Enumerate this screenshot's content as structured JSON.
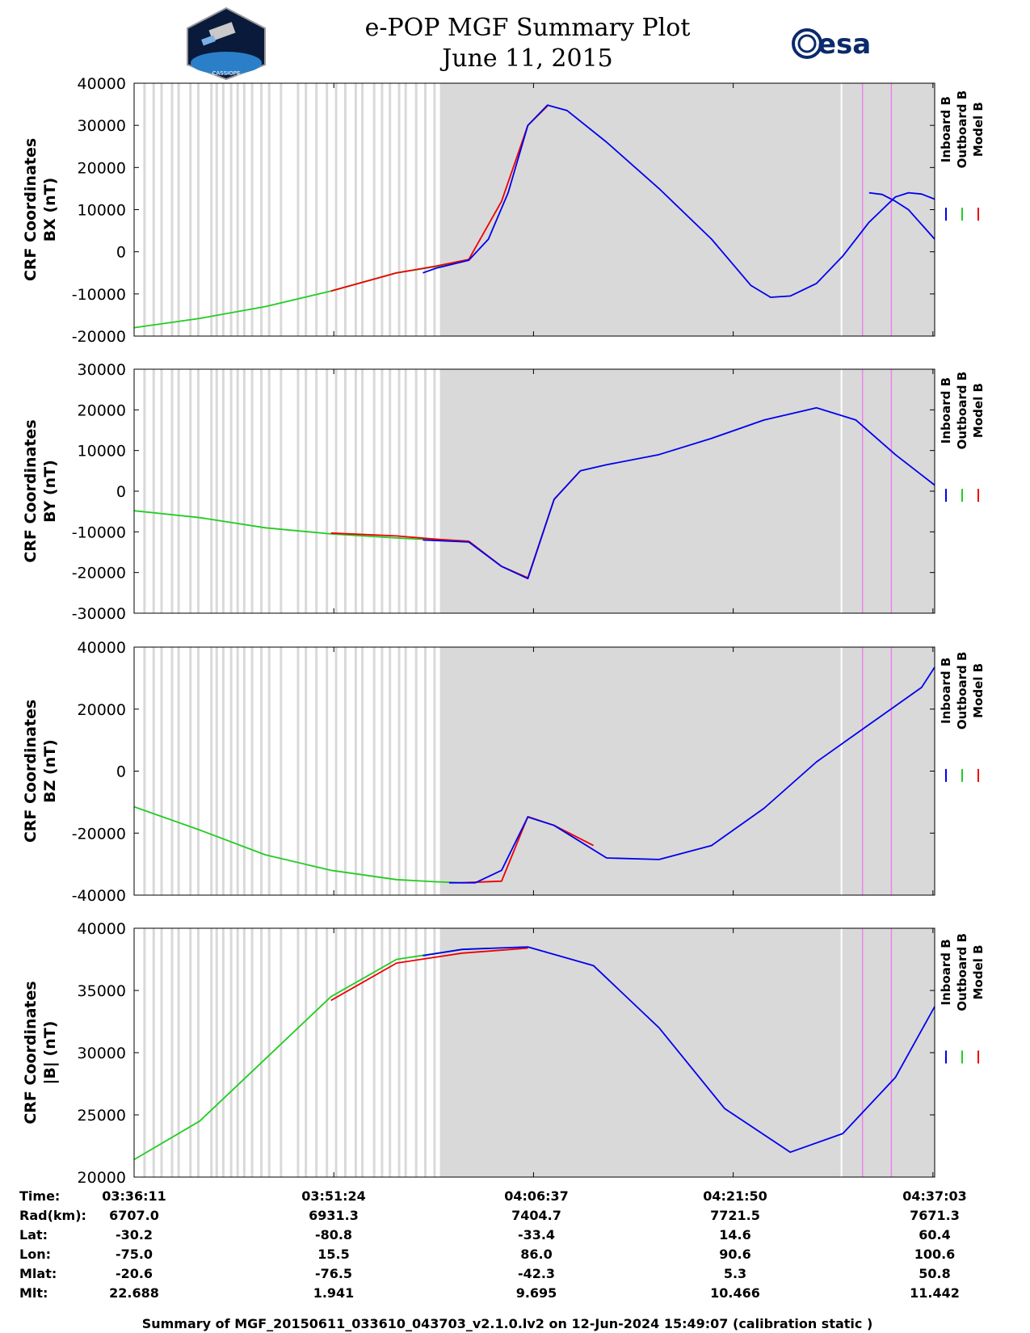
{
  "header": {
    "title_line1": "e-POP MGF Summary Plot",
    "title_line2": "June 11, 2015",
    "logo_left_text": "CASSIOPE",
    "logo_right_text": "esa"
  },
  "legend": {
    "inboard": "Inboard B",
    "outboard": "Outboard B",
    "model": "Model B"
  },
  "colors": {
    "inboard": "#0000ee",
    "outboard": "#22cc22",
    "model": "#ee0000",
    "background_shading": "#d9d9d9",
    "flag_line": "#ee82ee"
  },
  "chart_data": [
    {
      "type": "line",
      "ylabel_line1": "CRF Coordinates",
      "ylabel_line2": "BX (nT)",
      "ylim": [
        -20000,
        40000
      ],
      "yticks": [
        "-20000",
        "-10000",
        "0",
        "10000",
        "20000",
        "30000",
        "40000"
      ],
      "xlim_minutes": [
        0,
        61
      ],
      "series": [
        {
          "name": "Outboard B",
          "x": [
            0,
            5,
            10,
            15,
            20,
            23,
            25.5
          ],
          "y": [
            -18000,
            -15800,
            -13000,
            -9300,
            -5000,
            -3500,
            -2000
          ]
        },
        {
          "name": "Model B",
          "x": [
            15,
            20,
            23,
            25.5,
            28,
            30,
            31.5
          ],
          "y": [
            -9300,
            -5000,
            -3400,
            -1800,
            12000,
            30000,
            34600
          ]
        },
        {
          "name": "Inboard B",
          "x": [
            22,
            23,
            25.5,
            27,
            28.5,
            30,
            31.5,
            33,
            36,
            40,
            44,
            47,
            48.5,
            50,
            52,
            54,
            56,
            58,
            59,
            60,
            61
          ],
          "y": [
            -5000,
            -3900,
            -2000,
            3000,
            14000,
            30000,
            34800,
            33500,
            26000,
            15000,
            3000,
            -8000,
            -10800,
            -10500,
            -7500,
            -1000,
            7000,
            13000,
            14000,
            13700,
            12500
          ]
        },
        {
          "name": "Inboard B",
          "x": [
            56,
            57,
            58,
            59,
            60,
            61
          ],
          "y": [
            14000,
            13600,
            12000,
            10000,
            6500,
            3000
          ]
        }
      ]
    },
    {
      "type": "line",
      "ylabel_line1": "CRF Coordinates",
      "ylabel_line2": "BY (nT)",
      "ylim": [
        -30000,
        30000
      ],
      "yticks": [
        "-30000",
        "-20000",
        "-10000",
        "0",
        "10000",
        "20000",
        "30000"
      ],
      "xlim_minutes": [
        0,
        61
      ],
      "series": [
        {
          "name": "Outboard B",
          "x": [
            0,
            5,
            10,
            15,
            20,
            23,
            25.5
          ],
          "y": [
            -4800,
            -6500,
            -9000,
            -10500,
            -11500,
            -12000,
            -12500
          ]
        },
        {
          "name": "Model B",
          "x": [
            15,
            20,
            23,
            25.5,
            28,
            30,
            32,
            34
          ],
          "y": [
            -10300,
            -11000,
            -11800,
            -12300,
            -18500,
            -21300,
            -2000,
            5000
          ]
        },
        {
          "name": "Inboard B",
          "x": [
            22,
            25.5,
            28,
            30,
            32,
            34,
            36,
            40,
            44,
            48,
            52,
            55,
            58,
            60,
            61
          ],
          "y": [
            -12000,
            -12500,
            -18500,
            -21500,
            -2000,
            5000,
            6500,
            9000,
            13000,
            17500,
            20500,
            17500,
            9000,
            4000,
            1500
          ]
        }
      ]
    },
    {
      "type": "line",
      "ylabel_line1": "CRF Coordinates",
      "ylabel_line2": "BZ (nT)",
      "ylim": [
        -40000,
        40000
      ],
      "yticks": [
        "-40000",
        "-20000",
        "0",
        "20000",
        "40000"
      ],
      "xlim_minutes": [
        0,
        61
      ],
      "series": [
        {
          "name": "Outboard B",
          "x": [
            0,
            5,
            10,
            15,
            20,
            23,
            25
          ],
          "y": [
            -11500,
            -19000,
            -27000,
            -32000,
            -35000,
            -35700,
            -36000
          ]
        },
        {
          "name": "Model B",
          "x": [
            25,
            28,
            30,
            32,
            35
          ],
          "y": [
            -36000,
            -35500,
            -14700,
            -17500,
            -24000
          ]
        },
        {
          "name": "Inboard B",
          "x": [
            24,
            26,
            28,
            30,
            32,
            36,
            40,
            44,
            48,
            52,
            56,
            60,
            61
          ],
          "y": [
            -36000,
            -36000,
            -32000,
            -14800,
            -17500,
            -28000,
            -28500,
            -24000,
            -12000,
            3000,
            15000,
            27000,
            33500
          ]
        }
      ]
    },
    {
      "type": "line",
      "ylabel_line1": "CRF Coordinates",
      "ylabel_line2": "|B| (nT)",
      "ylim": [
        20000,
        40000
      ],
      "yticks": [
        "20000",
        "25000",
        "30000",
        "35000",
        "40000"
      ],
      "xlim_minutes": [
        0,
        61
      ],
      "series": [
        {
          "name": "Outboard B",
          "x": [
            0,
            5,
            10,
            15,
            20,
            25,
            27
          ],
          "y": [
            21400,
            24500,
            29500,
            34500,
            37500,
            38300,
            38400
          ]
        },
        {
          "name": "Model B",
          "x": [
            15,
            20,
            25,
            30
          ],
          "y": [
            34200,
            37200,
            38000,
            38400
          ]
        },
        {
          "name": "Inboard B",
          "x": [
            22,
            25,
            30,
            35,
            40,
            45,
            50,
            54,
            58,
            61
          ],
          "y": [
            37800,
            38300,
            38500,
            37000,
            32000,
            25500,
            22000,
            23500,
            28000,
            33700
          ]
        }
      ]
    }
  ],
  "info_table": {
    "row_labels": [
      "Time:",
      "Rad(km):",
      "Lat:",
      "Lon:",
      "Mlat:",
      "Mlt:"
    ],
    "columns": [
      [
        "03:36:11",
        "6707.0",
        "-30.2",
        "-75.0",
        "-20.6",
        "22.688"
      ],
      [
        "03:51:24",
        "6931.3",
        "-80.8",
        "15.5",
        "-76.5",
        "1.941"
      ],
      [
        "04:06:37",
        "7404.7",
        "-33.4",
        "86.0",
        "-42.3",
        "9.695"
      ],
      [
        "04:21:50",
        "7721.5",
        "14.6",
        "90.6",
        "5.3",
        "10.466"
      ],
      [
        "04:37:03",
        "7671.3",
        "60.4",
        "100.6",
        "50.8",
        "11.442"
      ]
    ]
  },
  "footer": "Summary of MGF_20150611_033610_043703_v2.1.0.lv2 on 12-Jun-2024 15:49:07 (calibration static )"
}
